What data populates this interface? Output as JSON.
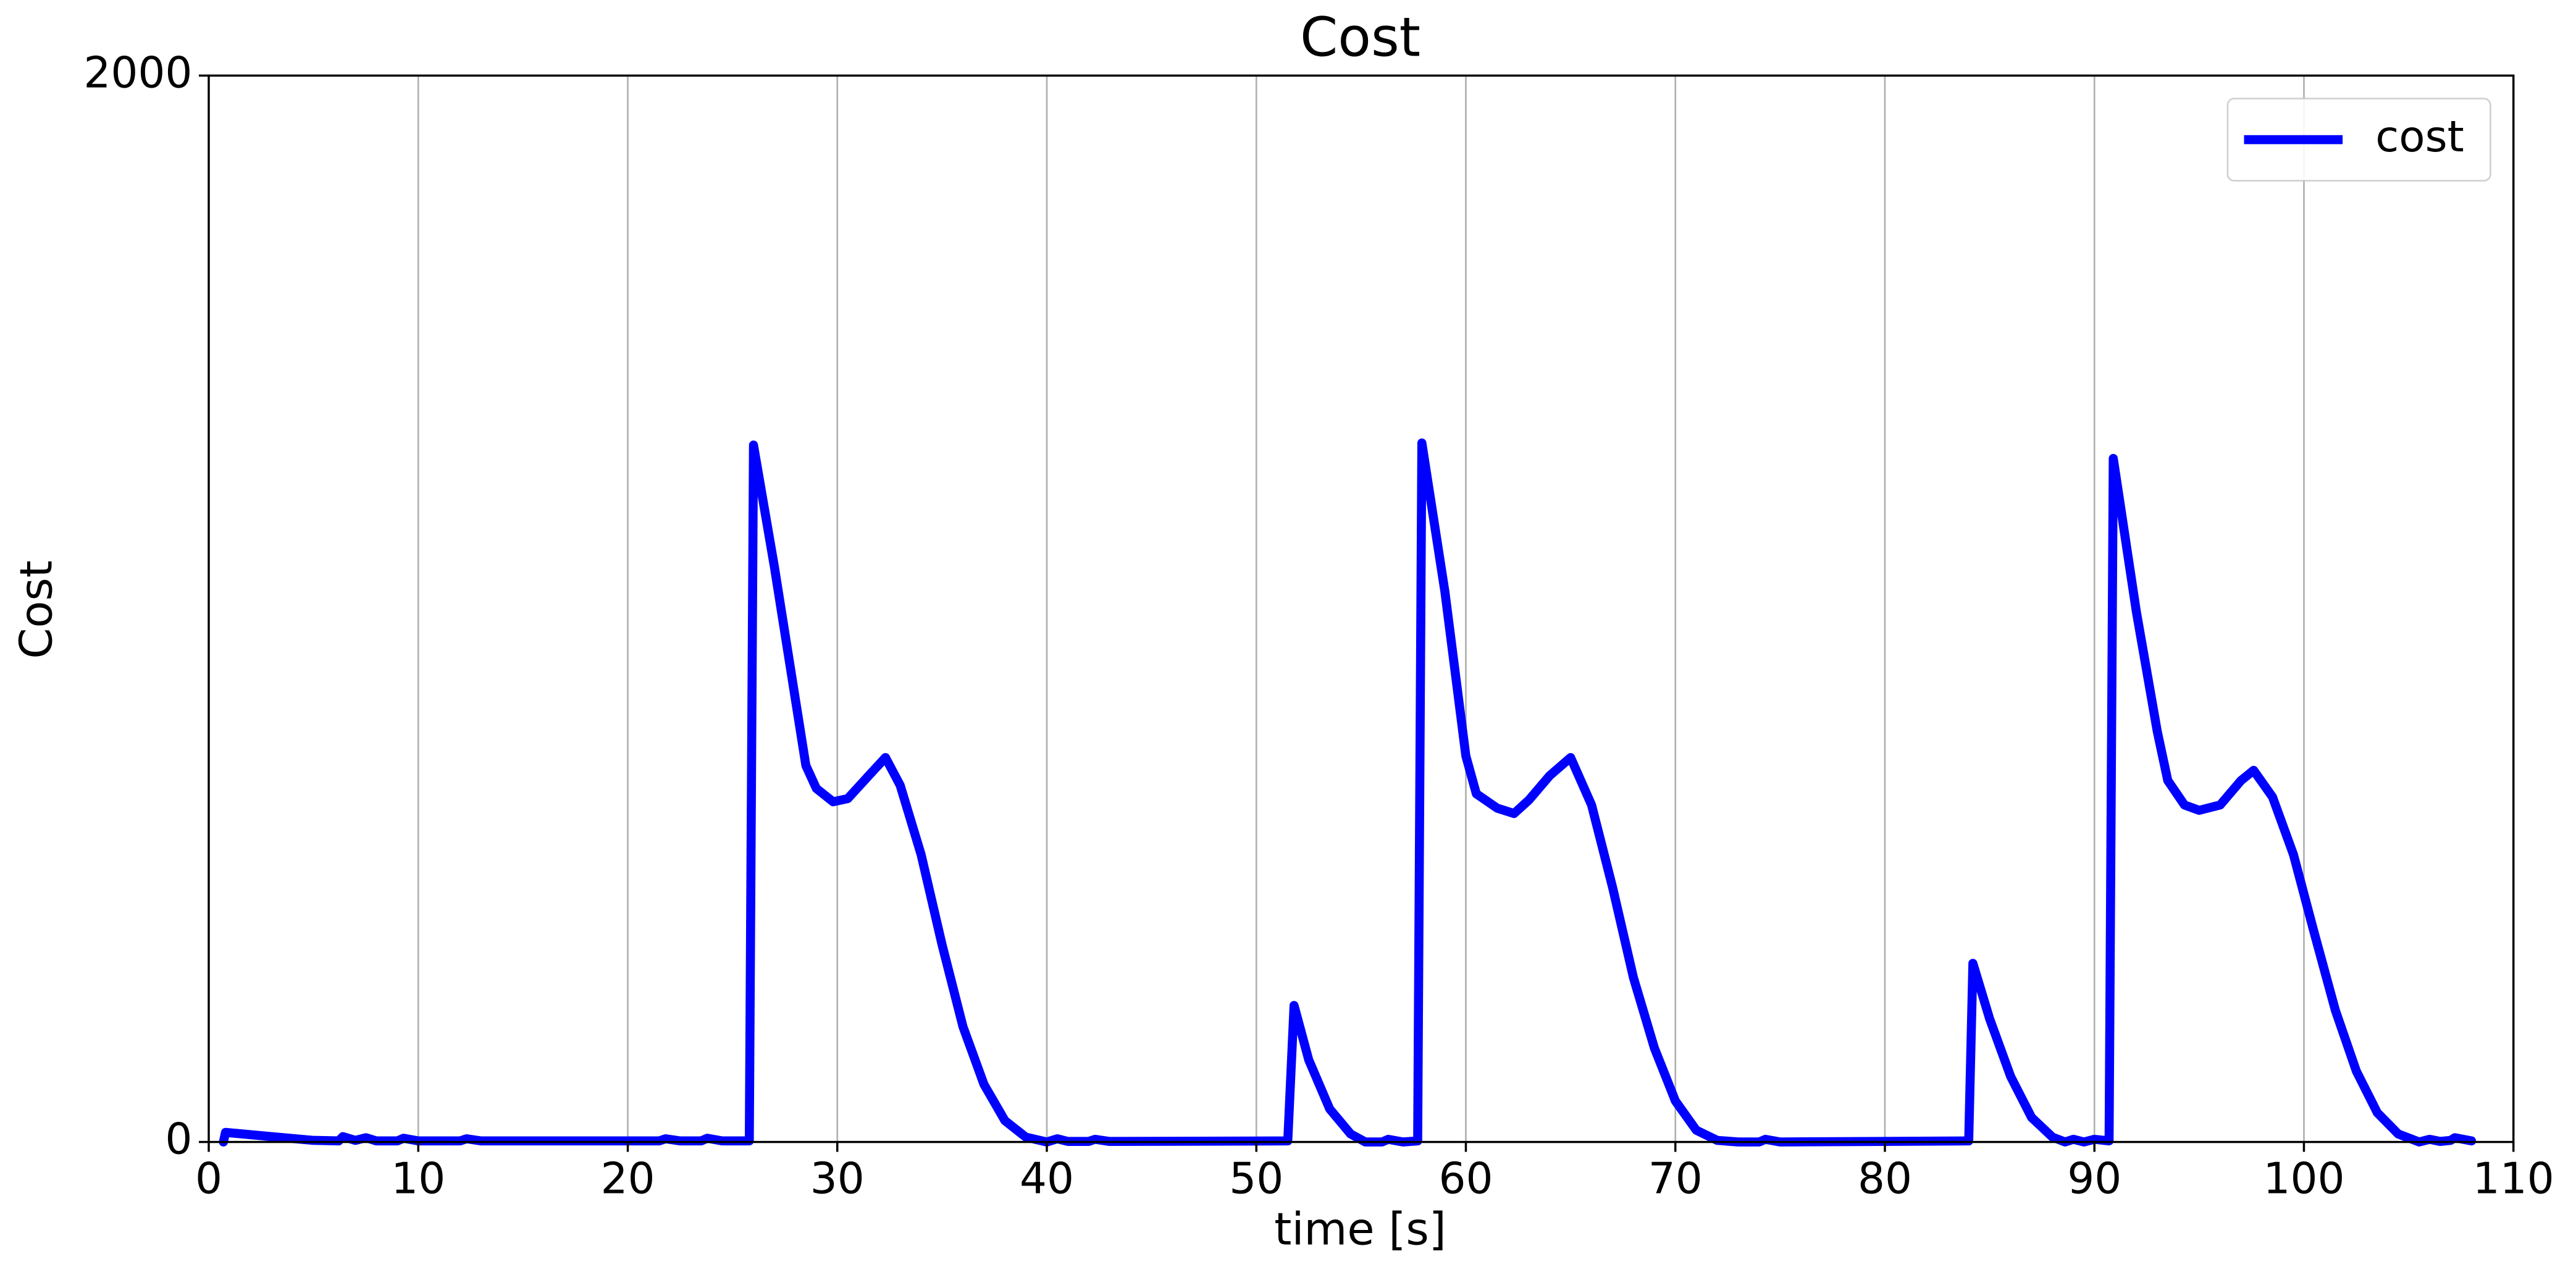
{
  "chart_data": {
    "type": "line",
    "title": "Cost",
    "xlabel": "time [s]",
    "ylabel": "Cost",
    "xlim": [
      0,
      110
    ],
    "ylim": [
      0,
      2000
    ],
    "xticks": [
      0,
      10,
      20,
      30,
      40,
      50,
      60,
      70,
      80,
      90,
      100,
      110
    ],
    "yticks": [
      0,
      2000
    ],
    "grid": "x",
    "legend": "upper right",
    "x": [
      0.7,
      0.8,
      3,
      5,
      6.2,
      6.4,
      7,
      7.5,
      8,
      9,
      9.3,
      10,
      12,
      12.3,
      13,
      20,
      21.5,
      21.8,
      22.5,
      23.5,
      23.8,
      24.5,
      25.8,
      26.0,
      27,
      28.5,
      29,
      29.8,
      30.5,
      31.5,
      32.3,
      33,
      34,
      35,
      36,
      37,
      38,
      39,
      40,
      40.5,
      41,
      42,
      42.3,
      43,
      51.5,
      51.8,
      52.5,
      53.5,
      54.5,
      55.2,
      56,
      56.3,
      57,
      57.7,
      57.9,
      59,
      60,
      60.5,
      61.5,
      62.3,
      63,
      64,
      65,
      66,
      67,
      68,
      69,
      70,
      71,
      72,
      73,
      74,
      74.3,
      75,
      84,
      84.2,
      85,
      86,
      87,
      88,
      88.6,
      89,
      89.5,
      90,
      90.7,
      90.9,
      92,
      93,
      93.5,
      94.3,
      95,
      96,
      97,
      97.6,
      98.5,
      99.5,
      100.5,
      101.5,
      102.5,
      103.5,
      104.5,
      105.5,
      106,
      106.5,
      107,
      107.2,
      108
    ],
    "series": [
      {
        "name": "cost",
        "color": "#0000ff",
        "values": [
          0,
          18,
          10,
          3,
          2,
          10,
          3,
          8,
          2,
          2,
          7,
          2,
          2,
          6,
          2,
          2,
          2,
          6,
          2,
          2,
          7,
          2,
          2,
          1307,
          1078,
          706,
          663,
          638,
          644,
          687,
          721,
          669,
          539,
          370,
          216,
          108,
          40,
          9,
          0,
          6,
          1,
          1,
          5,
          1,
          2,
          256,
          154,
          62,
          15,
          0,
          0,
          5,
          0,
          2,
          1311,
          1032,
          724,
          653,
          626,
          616,
          641,
          687,
          721,
          632,
          478,
          308,
          176,
          77,
          22,
          3,
          0,
          0,
          5,
          0,
          2,
          335,
          231,
          123,
          46,
          9,
          0,
          5,
          0,
          5,
          2,
          1282,
          995,
          770,
          678,
          632,
          622,
          632,
          678,
          697,
          647,
          539,
          391,
          247,
          133,
          55,
          15,
          0,
          5,
          1,
          3,
          8,
          2
        ]
      }
    ]
  }
}
